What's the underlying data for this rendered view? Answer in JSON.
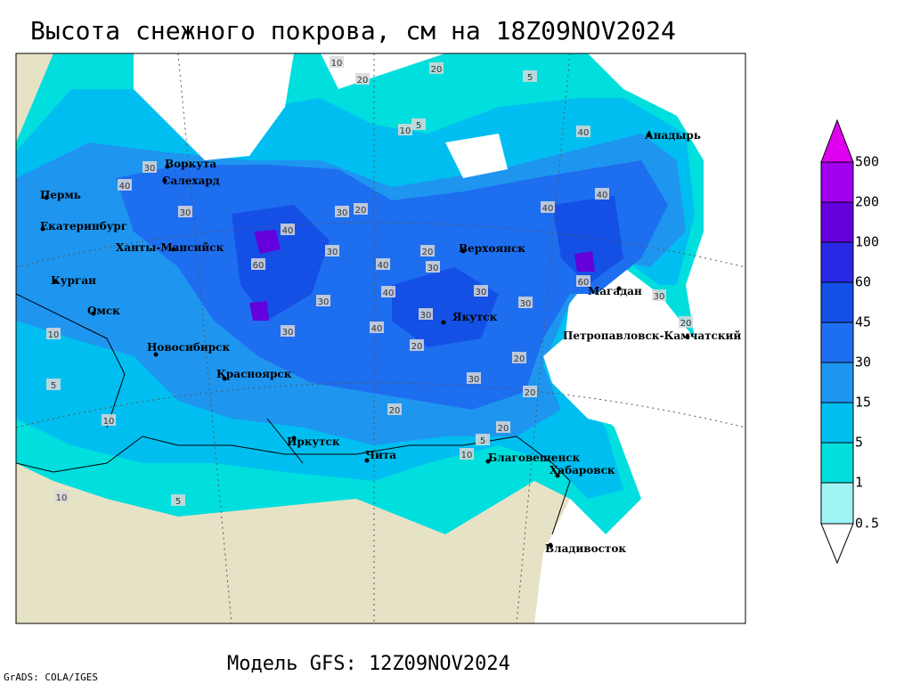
{
  "title": "Высота снежного покрова, см на 18Z09NOV2024",
  "legend": {
    "labels": [
      "0.5",
      "1",
      "5",
      "15",
      "30",
      "45",
      "60",
      "100",
      "200",
      "500"
    ]
  },
  "cities": [
    "Воркута",
    "Салехард",
    "Пермь",
    "Екатеринбург",
    "Ханты-Мансийск",
    "Курган",
    "Омск",
    "Новосибирск",
    "Красноярск",
    "Иркутск",
    "Чита",
    "Верхоянск",
    "Якутск",
    "Магадан",
    "Анадырь",
    "Петропавловск-Камчатский",
    "Благовещенск",
    "Хабаровск",
    "Владивосток"
  ],
  "contour_labels": [
    "10",
    "20",
    "5",
    "20",
    "10",
    "5",
    "40",
    "30",
    "40",
    "30",
    "30",
    "20",
    "40",
    "30",
    "20",
    "40",
    "30",
    "40",
    "30",
    "60",
    "30",
    "40",
    "30",
    "40",
    "30",
    "60",
    "30",
    "40",
    "20",
    "30",
    "20",
    "20",
    "10",
    "10",
    "5",
    "10",
    "5",
    "20",
    "10",
    "5",
    "20",
    "30",
    "20"
  ],
  "footer": "Модель GFS: 12Z09NOV2024",
  "credit": "GrADS: COLA/IGES"
}
